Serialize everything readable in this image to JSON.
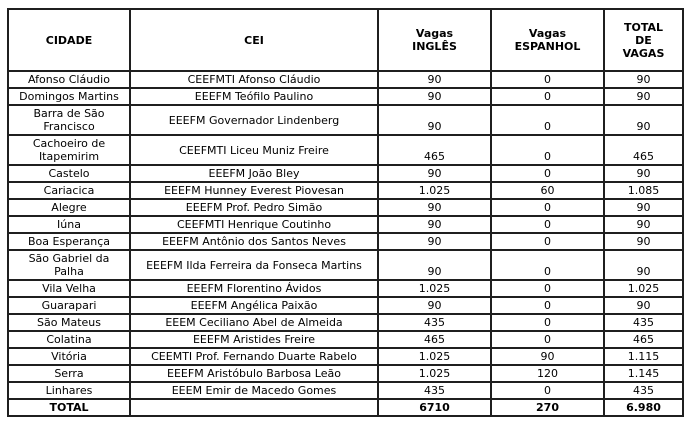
{
  "table": {
    "headers": [
      "CIDADE",
      "CEI",
      "Vagas\nINGLÊS",
      "Vagas\nESPANHOL",
      "TOTAL\nDE\nVAGAS"
    ],
    "column_keys": [
      "cidade",
      "cei",
      "vagas-ingles",
      "vagas-espanhol",
      "total-de-vagas"
    ],
    "rows": [
      [
        "Afonso Cláudio",
        "CEEFMTI Afonso Cláudio",
        "90",
        "0",
        "90"
      ],
      [
        "Domingos Martins",
        "EEEFM Teófilo Paulino",
        "90",
        "0",
        "90"
      ],
      [
        "Barra de São\nFrancisco",
        "EEEFM Governador Lindenberg",
        "90",
        "0",
        "90"
      ],
      [
        "Cachoeiro de\nItapemirim",
        "CEEFMTI Liceu Muniz Freire",
        "465",
        "0",
        "465"
      ],
      [
        "Castelo",
        "EEEFM João Bley",
        "90",
        "0",
        "90"
      ],
      [
        "Cariacica",
        "EEEFM Hunney Everest Piovesan",
        "1.025",
        "60",
        "1.085"
      ],
      [
        "Alegre",
        "EEEFM Prof. Pedro Simão",
        "90",
        "0",
        "90"
      ],
      [
        "Iúna",
        "CEEFMTI Henrique Coutinho",
        "90",
        "0",
        "90"
      ],
      [
        "Boa Esperança",
        "EEEFM Antônio dos Santos Neves",
        "90",
        "0",
        "90"
      ],
      [
        "São Gabriel da\nPalha",
        "EEEFM Ilda Ferreira da Fonseca Martins",
        "90",
        "0",
        "90"
      ],
      [
        "Vila Velha",
        "EEEFM Florentino Ávidos",
        "1.025",
        "0",
        "1.025"
      ],
      [
        "Guarapari",
        "EEEFM Angélica Paixão",
        "90",
        "0",
        "90"
      ],
      [
        "São Mateus",
        "EEEM Ceciliano Abel de Almeida",
        "435",
        "0",
        "435"
      ],
      [
        "Colatina",
        "EEEFM Aristides Freire",
        "465",
        "0",
        "465"
      ],
      [
        "Vitória",
        "CEEMTI Prof. Fernando Duarte Rabelo",
        "1.025",
        "90",
        "1.115"
      ],
      [
        "Serra",
        "EEEFM Aristóbulo Barbosa Leão",
        "1.025",
        "120",
        "1.145"
      ],
      [
        "Linhares",
        "EEEM Emir de Macedo Gomes",
        "435",
        "0",
        "435"
      ]
    ],
    "total_row": [
      "TOTAL",
      "",
      "6710",
      "270",
      "6.980"
    ],
    "colors": {
      "border": "#1f1f1f",
      "text": "#000000",
      "background": "#ffffff"
    }
  }
}
